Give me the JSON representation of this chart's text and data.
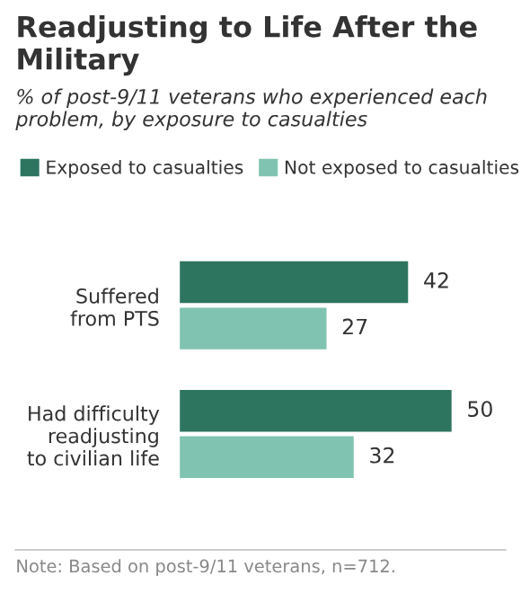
{
  "chart_data": {
    "type": "bar",
    "orientation": "horizontal",
    "title": "Readjusting to Life After the Military",
    "subtitle": "% of post-9/11 veterans who experienced each problem, by exposure to casualties",
    "categories": [
      "Suffered\nfrom PTS",
      "Had difficulty\nreadjusting\nto civilian life"
    ],
    "series": [
      {
        "name": "Exposed to casualties",
        "color": "#2e7560",
        "values": [
          42,
          50
        ]
      },
      {
        "name": "Not exposed to casualties",
        "color": "#7fc3b0",
        "values": [
          27,
          32
        ]
      }
    ],
    "data_labels": true,
    "legend": "top",
    "grid": false,
    "annotations": [
      "Note: Based on post-9/11 veterans, n=712."
    ]
  }
}
